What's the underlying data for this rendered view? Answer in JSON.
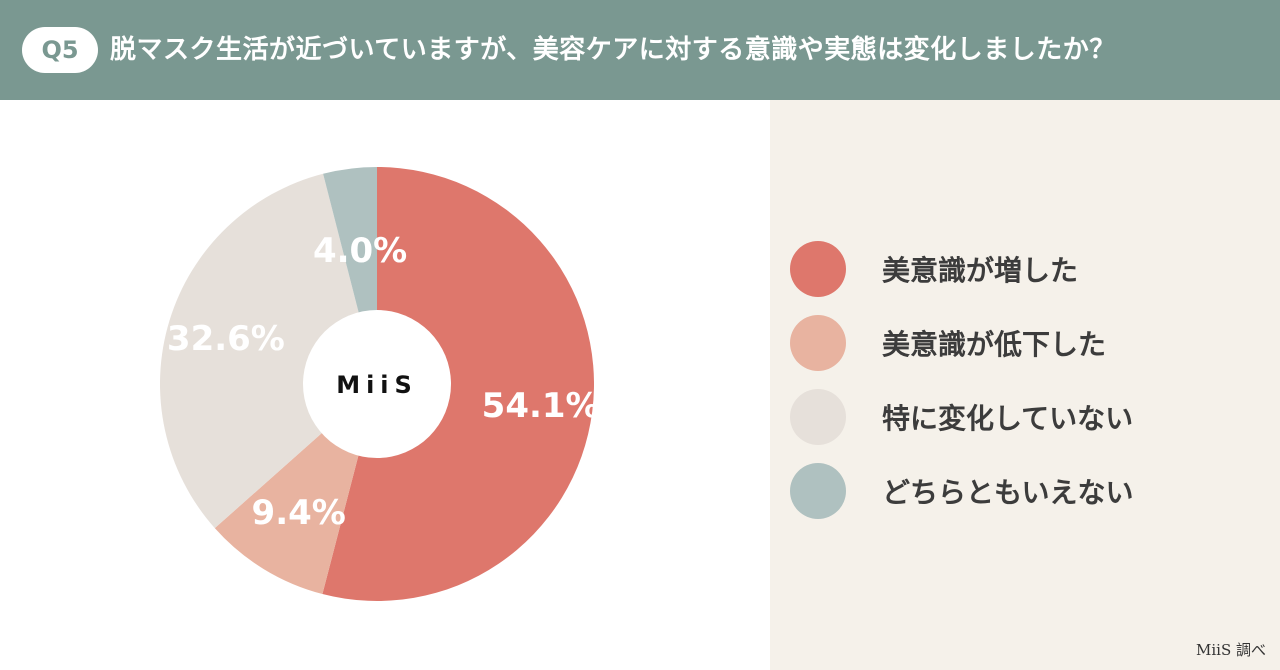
{
  "header": {
    "badge": "Q5",
    "title": "脱マスク生活が近づいていますが、美容ケアに対する意識や実態は変化しましたか？"
  },
  "center_label": "MiiS",
  "credit": "MiiS 調べ",
  "chart_data": {
    "type": "pie",
    "title": "脱マスク生活が近づいていますが、美容ケアに対する意識や実態は変化しましたか？",
    "categories": [
      "美意識が増した",
      "美意識が低下した",
      "特に変化していない",
      "どちらともいえない"
    ],
    "values": [
      54.1,
      9.4,
      32.6,
      4.0
    ],
    "labels": [
      "54.1%",
      "9.4%",
      "32.6%",
      "4.0%"
    ],
    "colors": [
      "#de776c",
      "#e8b3a0",
      "#e6e0da",
      "#afc1c0"
    ],
    "donut": true,
    "start_angle": "12 o'clock",
    "direction": "clockwise",
    "legend_position": "right"
  }
}
